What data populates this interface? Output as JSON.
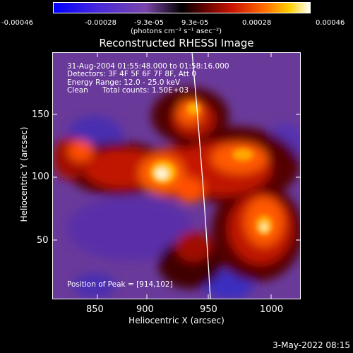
{
  "colorbar": {
    "ticks": [
      "-0.00046",
      "-0.00028",
      "-9.3e-05",
      "9.3e-05",
      "0.00028",
      "0.00046"
    ],
    "units": "(photons cm⁻² s⁻¹ asec⁻²)",
    "colors": [
      "#0000ff",
      "#5a2dd0",
      "#7a45a8",
      "#000000",
      "#5a0000",
      "#d01800",
      "#ff6a00",
      "#ffd000",
      "#ffffff"
    ]
  },
  "title": "Reconstructed RHESSI Image",
  "annotations": {
    "time_range": "31-Aug-2004 01:55:48.000 to 01:58:16.000",
    "detectors": "Detectors: 3F 4F 5F 6F 7F 8F, Att 0",
    "energy_range": "Energy Range: 12.0 - 25.0 keV",
    "algorithm": "Clean",
    "total_counts": "Total counts: 1.50E+03",
    "peak_position": "Position of Peak = [914,102]"
  },
  "x_axis": {
    "label": "Heliocentric X (arcsec)",
    "ticks": [
      "850",
      "900",
      "950",
      "1000"
    ]
  },
  "y_axis": {
    "label": "Heliocentric Y (arcsec)",
    "ticks": [
      "50",
      "100",
      "150"
    ]
  },
  "footer_timestamp": "3-May-2022 08:15"
}
